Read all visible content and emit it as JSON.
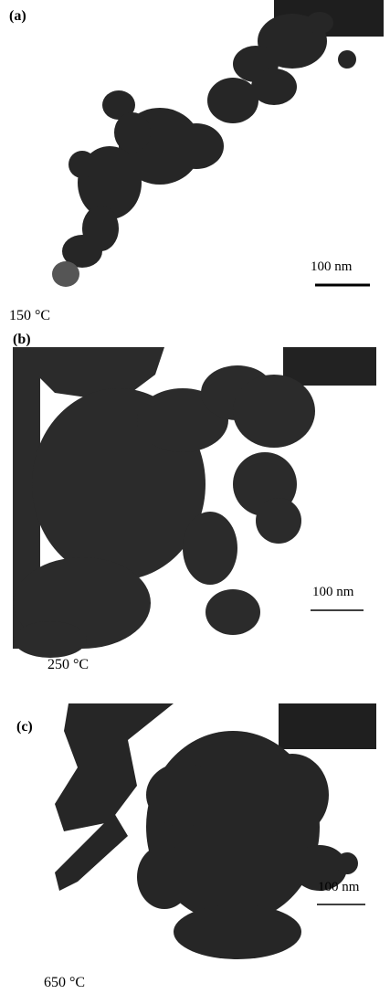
{
  "figure": {
    "panels": [
      {
        "label": "(a)",
        "scale_bar": "100 nm",
        "temperature": "150 °C"
      },
      {
        "label": "(b)",
        "scale_bar": "100 nm",
        "temperature": "250 °C"
      },
      {
        "label": "(c)",
        "scale_bar": "100 nm",
        "temperature": "650 °C"
      }
    ]
  }
}
